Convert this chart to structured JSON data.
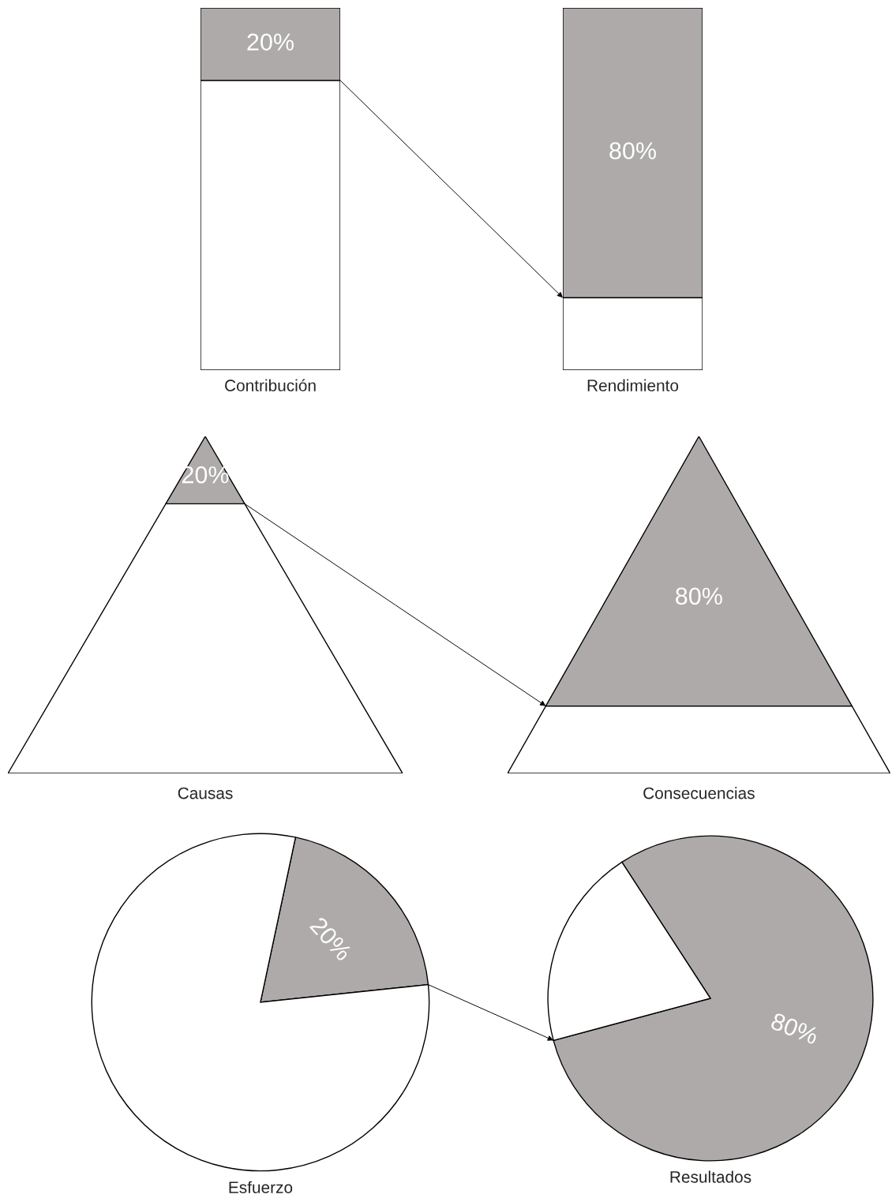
{
  "chart_data": [
    {
      "type": "other",
      "values": [
        20
      ],
      "color": "#aeaaaa",
      "value_labels": [
        "20%"
      ],
      "xlabel": "Contribución"
    },
    {
      "type": "other",
      "values": [
        80
      ],
      "color": "#aeaaaa",
      "value_labels": [
        "80%"
      ],
      "xlabel": "Rendimiento"
    },
    {
      "type": "other",
      "values": [
        20
      ],
      "color": "#aeaaaa",
      "value_labels": [
        "20%"
      ],
      "xlabel": "Causas"
    },
    {
      "type": "other",
      "values": [
        80
      ],
      "color": "#aeaaaa",
      "value_labels": [
        "80%"
      ],
      "xlabel": "Consecuencias"
    },
    {
      "type": "pie",
      "categories": [
        null,
        null
      ],
      "values": [
        20,
        80
      ],
      "colors": [
        "#aeaaaa",
        "#ffffff"
      ],
      "value_labels": [
        "20%",
        null
      ],
      "xlabel": "Esfuerzo"
    },
    {
      "type": "pie",
      "categories": [
        null,
        null
      ],
      "values": [
        80,
        20
      ],
      "colors": [
        "#aeaaaa",
        "#ffffff"
      ],
      "value_labels": [
        "80%",
        null
      ],
      "xlabel": "Resultados"
    }
  ]
}
